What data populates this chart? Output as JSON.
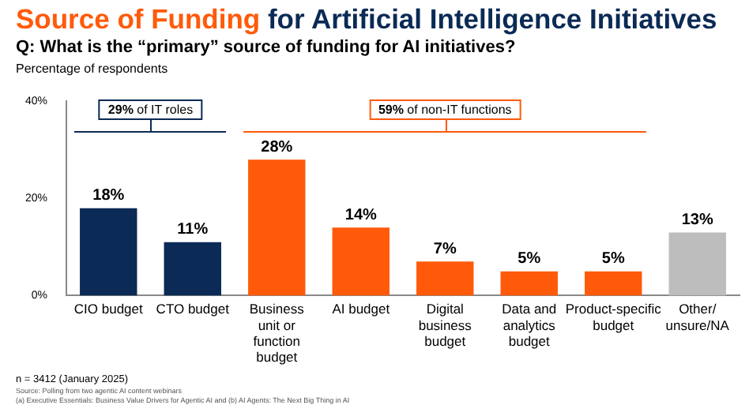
{
  "chart_data": {
    "type": "bar",
    "title": "Source of Funding for Artificial Intelligence Initiatives",
    "subtitle": "Q: What is the “primary” source of funding for AI initiatives?",
    "ylabel": "Percentage of respondents",
    "categories": [
      "CIO budget",
      "CTO budget",
      "Business unit or function budget",
      "AI budget",
      "Digital business budget",
      "Data and analytics budget",
      "Product-specific budget",
      "Other/ unsure/NA"
    ],
    "values": [
      18,
      11,
      28,
      14,
      7,
      5,
      5,
      13
    ],
    "colors": [
      "#0b2a55",
      "#0b2a55",
      "#ff5a0a",
      "#ff5a0a",
      "#ff5a0a",
      "#ff5a0a",
      "#ff5a0a",
      "#bdbdbd"
    ],
    "value_labels": [
      "18%",
      "11%",
      "28%",
      "14%",
      "7%",
      "5%",
      "5%",
      "13%"
    ],
    "ylim": [
      0,
      40
    ],
    "yticks": [
      {
        "value": 0,
        "label": "0%"
      },
      {
        "value": 20,
        "label": "20%"
      },
      {
        "value": 40,
        "label": "40%"
      }
    ],
    "grid": false,
    "annotations": [
      "29% of IT roles",
      "59% of non-IT functions",
      "n = 3412 (January 2025)",
      "Source: Polling from two agentic AI content webinars",
      "(a) Executive Essentials: Business Value Drivers for Agentic AI and (b) AI Agents: The Next Big Thing in AI"
    ]
  }
}
